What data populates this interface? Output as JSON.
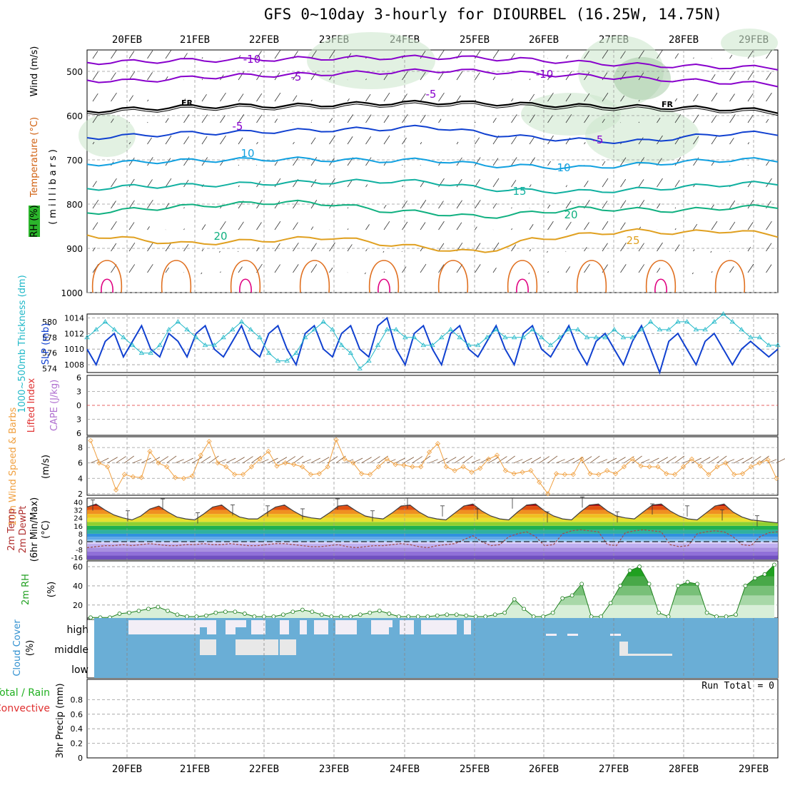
{
  "title": "GFS 0~10day 3-hourly for DIOURBEL (16.25W, 14.75N)",
  "dates": [
    "20FEB",
    "21FEB",
    "22FEB",
    "23FEB",
    "24FEB",
    "25FEB",
    "26FEB",
    "27FEB",
    "28FEB",
    "29FEB"
  ],
  "colors": {
    "purple": "#8800cc",
    "black": "#000000",
    "blue": "#1040d0",
    "cyan": "#10a0e0",
    "teal": "#10b0a0",
    "green": "#10b080",
    "orange": "#e0a020",
    "dkorange": "#e07020",
    "magenta": "#e00080",
    "cloud": "#6aaed6",
    "rhfill": "#d8efd8"
  },
  "chart_data": [
    {
      "type": "contour",
      "panel": "upper-air",
      "ylabel_parts": [
        "RH (%)",
        "Temperature (°C)",
        "Wind (m/s)",
        "(millibars)"
      ],
      "yticks": [
        500,
        600,
        700,
        800,
        900,
        1000
      ],
      "ylim": [
        1000,
        450
      ],
      "contour_labels": [
        "-10",
        "-5",
        "FR",
        "-5",
        "10",
        "15",
        "20",
        "25",
        "-10",
        "-5",
        "FR",
        "-5",
        "10",
        "20"
      ],
      "isotherms": [
        {
          "label": "-10",
          "pressure": [
            480,
            478,
            475,
            474,
            472,
            470,
            469,
            468,
            470,
            474,
            480,
            485,
            488,
            490,
            492
          ]
        },
        {
          "label": "-5",
          "pressure": [
            520,
            522,
            515,
            510,
            508,
            505,
            502,
            498,
            500,
            505,
            510,
            515,
            520,
            525,
            530
          ]
        },
        {
          "label": "FR",
          "pressure": [
            590,
            585,
            580,
            578,
            578,
            575,
            572,
            570,
            572,
            575,
            578,
            580,
            582,
            585,
            590
          ]
        },
        {
          "label": "5",
          "pressure": [
            650,
            645,
            640,
            638,
            635,
            632,
            630,
            625,
            640,
            650,
            655,
            660,
            650,
            640,
            640
          ]
        },
        {
          "label": "10",
          "pressure": [
            710,
            705,
            702,
            700,
            698,
            700,
            702,
            700,
            712,
            715,
            718,
            712,
            705,
            700,
            700
          ]
        },
        {
          "label": "15",
          "pressure": [
            765,
            760,
            758,
            755,
            752,
            750,
            748,
            750,
            765,
            770,
            772,
            768,
            762,
            755,
            752
          ]
        },
        {
          "label": "20",
          "pressure": [
            820,
            812,
            805,
            800,
            795,
            800,
            815,
            820,
            830,
            820,
            810,
            812,
            815,
            808,
            805
          ]
        },
        {
          "label": "25",
          "pressure": [
            870,
            880,
            890,
            885,
            880,
            875,
            890,
            900,
            910,
            880,
            870,
            860,
            865,
            860,
            870
          ]
        }
      ]
    },
    {
      "type": "line",
      "panel": "thickness-slp",
      "ylabel_parts": [
        "1000~500mb Thickness (dm)",
        "SLP (mb)"
      ],
      "left_ticks": [
        574,
        576,
        578,
        580
      ],
      "right_ticks": [
        1008,
        1010,
        1012,
        1014
      ],
      "series": [
        {
          "name": "SLP (mb)",
          "axis": "right",
          "values": [
            1010,
            1008,
            1011,
            1012,
            1009,
            1011,
            1013,
            1010,
            1009,
            1012,
            1011,
            1009,
            1012,
            1013,
            1010,
            1009,
            1011,
            1013,
            1010,
            1009,
            1012,
            1013,
            1010,
            1008,
            1012,
            1013,
            1010,
            1009,
            1012,
            1013,
            1010,
            1009,
            1013,
            1014,
            1010,
            1008,
            1012,
            1013,
            1010,
            1008,
            1012,
            1013,
            1010,
            1009,
            1011,
            1013,
            1010,
            1008,
            1012,
            1013,
            1010,
            1009,
            1011,
            1013,
            1010,
            1008,
            1011,
            1012,
            1010,
            1008,
            1011,
            1013,
            1010,
            1007,
            1011,
            1012,
            1010,
            1008,
            1011,
            1012,
            1010,
            1008,
            1010,
            1011,
            1010,
            1009,
            1010
          ]
        },
        {
          "name": "1000~500mb Thickness (dm)",
          "axis": "left",
          "values": [
            578,
            579,
            580,
            579,
            578,
            577,
            576,
            576,
            577,
            579,
            580,
            579,
            578,
            577,
            577,
            578,
            579,
            580,
            579,
            578,
            576,
            575,
            575,
            576,
            578,
            579,
            580,
            579,
            577,
            576,
            574,
            575,
            577,
            579,
            579,
            578,
            578,
            577,
            577,
            578,
            579,
            578,
            577,
            577,
            578,
            579,
            578,
            578,
            578,
            579,
            578,
            577,
            578,
            579,
            579,
            578,
            578,
            578,
            579,
            578,
            578,
            579,
            580,
            579,
            579,
            580,
            580,
            579,
            579,
            580,
            581,
            580,
            579,
            578,
            578,
            577,
            577
          ]
        }
      ]
    },
    {
      "type": "line",
      "panel": "cape-li",
      "ylabel_parts": [
        "Lifted Index",
        "CAPE (J/kg)"
      ],
      "yticks": [
        "6",
        "3",
        "0",
        "3",
        "6"
      ],
      "series": [
        {
          "name": "Lifted Index",
          "values": [
            0
          ]
        }
      ]
    },
    {
      "type": "line",
      "panel": "wind10m",
      "ylabel_parts": [
        "10m Wind Speed & Barbs",
        "(m/s)"
      ],
      "yticks": [
        2,
        4,
        6,
        8
      ],
      "ylim": [
        2,
        9
      ],
      "series": [
        {
          "name": "10m Wind Speed",
          "values": [
            8.9,
            6.0,
            5.5,
            2.5,
            4.5,
            4.2,
            4.1,
            7.5,
            6.0,
            5.5,
            4.1,
            4.0,
            4.3,
            7.0,
            8.8,
            6.0,
            5.5,
            4.5,
            4.5,
            5.5,
            6.5,
            7.5,
            5.6,
            6.0,
            5.8,
            5.5,
            4.5,
            4.6,
            5.5,
            9.0,
            6.5,
            6.0,
            4.6,
            4.5,
            5.5,
            6.5,
            5.8,
            5.7,
            5.5,
            5.5,
            7.4,
            8.5,
            5.5,
            5.0,
            5.5,
            4.8,
            5.3,
            6.5,
            7.0,
            5.0,
            4.6,
            4.8,
            5.0,
            3.5,
            2.0,
            4.6,
            4.5,
            4.5,
            6.5,
            4.6,
            4.5,
            5.0,
            4.6,
            5.5,
            6.5,
            5.6,
            5.5,
            5.5,
            4.6,
            4.5,
            5.5,
            6.5,
            5.6,
            4.5,
            5.5,
            6.0,
            4.5,
            4.6,
            5.5,
            6.0,
            6.4,
            4.0
          ]
        }
      ]
    },
    {
      "type": "area",
      "panel": "temp-dewpt",
      "ylabel_parts": [
        "2m Temp",
        "2m DewPt",
        "(6hr Min/Max)",
        "(°C)"
      ],
      "yticks": [
        -16,
        -8,
        0,
        8,
        16,
        24,
        32,
        40
      ],
      "ylim": [
        -18,
        44
      ],
      "series": [
        {
          "name": "2m Temp",
          "values": [
            35,
            38,
            32,
            27,
            24,
            22,
            26,
            33,
            36,
            30,
            25,
            23,
            22,
            28,
            35,
            37,
            30,
            25,
            23,
            23,
            29,
            35,
            37,
            31,
            26,
            24,
            23,
            29,
            36,
            37,
            31,
            26,
            24,
            23,
            29,
            36,
            37,
            30,
            25,
            23,
            22,
            29,
            36,
            38,
            31,
            26,
            23,
            22,
            30,
            37,
            38,
            31,
            26,
            23,
            22,
            30,
            37,
            38,
            31,
            26,
            24,
            23,
            30,
            37,
            38,
            31,
            26,
            23,
            22,
            29,
            36,
            38,
            30,
            25,
            22,
            21,
            20,
            19
          ]
        },
        {
          "name": "2m DewPt",
          "values": [
            -6,
            -5,
            -4,
            -4,
            -3,
            -4,
            -3,
            -2,
            -3,
            -4,
            -4,
            -3,
            -3,
            -2,
            -3,
            -3,
            -2,
            -3,
            -4,
            -4,
            -3,
            -2,
            -2,
            -3,
            -4,
            -5,
            -5,
            -4,
            -3,
            -5,
            -6,
            -5,
            -4,
            -4,
            -3,
            -2,
            -3,
            -5,
            -6,
            -4,
            -3,
            -2,
            2,
            6,
            0,
            -4,
            -3,
            5,
            8,
            10,
            5,
            -4,
            -3,
            8,
            11,
            12,
            11,
            10,
            -3,
            -4,
            9,
            11,
            12,
            11,
            10,
            -3,
            -5,
            -4,
            8,
            10,
            11,
            10,
            5,
            -3,
            -4,
            5,
            9,
            10
          ]
        }
      ]
    },
    {
      "type": "area",
      "panel": "rh2m",
      "ylabel_parts": [
        "2m RH",
        "(%)"
      ],
      "yticks": [
        20,
        40,
        60
      ],
      "ylim": [
        5,
        66
      ],
      "series": [
        {
          "name": "2m RH",
          "values": [
            7,
            7,
            7,
            11,
            12,
            14,
            16,
            18,
            14,
            10,
            8,
            8,
            9,
            12,
            13,
            13,
            11,
            8,
            8,
            8,
            10,
            13,
            15,
            13,
            10,
            8,
            8,
            8,
            10,
            12,
            14,
            11,
            8,
            8,
            8,
            8,
            9,
            10,
            10,
            9,
            8,
            8,
            10,
            12,
            26,
            16,
            8,
            8,
            12,
            27,
            30,
            42,
            8,
            8,
            22,
            40,
            56,
            60,
            42,
            12,
            8,
            40,
            44,
            42,
            12,
            8,
            8,
            10,
            40,
            48,
            52,
            62
          ]
        }
      ]
    },
    {
      "type": "heatmap",
      "panel": "cloud",
      "ylabel_parts": [
        "Cloud Cover",
        "(%)"
      ],
      "rows": [
        "high",
        "middle",
        "low"
      ]
    },
    {
      "type": "bar",
      "panel": "precip",
      "ylabel_parts": [
        "Total / Rain",
        "Convective",
        "3hr Precip (mm)"
      ],
      "yticks": [
        0,
        0.2,
        0.4,
        0.6,
        0.8
      ],
      "ylim": [
        0,
        1.0
      ],
      "annotation": "Run Total = 0",
      "values": []
    }
  ]
}
